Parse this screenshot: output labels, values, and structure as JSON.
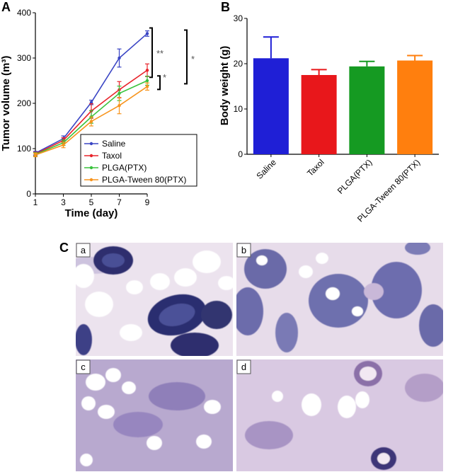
{
  "panels": {
    "a": "A",
    "b": "B",
    "c": "C"
  },
  "chart_data": [
    {
      "type": "line",
      "title": "",
      "xlabel": "Time (day)",
      "ylabel": "Tumor volume (m³)",
      "x": [
        1,
        3,
        5,
        7,
        9
      ],
      "xticks": [
        "1",
        "3",
        "5",
        "7",
        "9"
      ],
      "yticks": [
        "0",
        "100",
        "200",
        "300",
        "400"
      ],
      "xlim": [
        1,
        9
      ],
      "ylim": [
        0,
        400
      ],
      "grid": false,
      "legend_position": "bottom-right",
      "series": [
        {
          "name": "Saline",
          "color": "#3a45c4",
          "values": [
            90,
            122,
            202,
            300,
            354
          ],
          "errors": [
            4,
            6,
            5,
            20,
            6
          ]
        },
        {
          "name": "Taxol",
          "color": "#e8242b",
          "values": [
            88,
            118,
            183,
            230,
            273
          ],
          "errors": [
            4,
            6,
            16,
            18,
            14
          ]
        },
        {
          "name": "PLGA(PTX)",
          "color": "#39c23c",
          "values": [
            87,
            113,
            170,
            222,
            250
          ],
          "errors": [
            4,
            6,
            14,
            16,
            10
          ]
        },
        {
          "name": "PLGA-Tween 80(PTX)",
          "color": "#f7941d",
          "values": [
            86,
            108,
            160,
            195,
            237
          ],
          "errors": [
            4,
            6,
            10,
            18,
            8
          ]
        }
      ],
      "significance": [
        "**",
        "*",
        "*"
      ]
    },
    {
      "type": "bar",
      "title": "",
      "xlabel": "",
      "ylabel": "Body weight (g)",
      "categories": [
        "Saline",
        "Taxol",
        "PLGA(PTX)",
        "PLGA-Tween 80(PTX)"
      ],
      "values": [
        21.2,
        17.5,
        19.4,
        20.7
      ],
      "errors": [
        4.7,
        1.2,
        1.1,
        1.1
      ],
      "colors": [
        "#1f1fd6",
        "#e8171b",
        "#159a22",
        "#ff7f0e"
      ],
      "yticks": [
        "0",
        "10",
        "20",
        "30"
      ],
      "ylim": [
        0,
        30
      ],
      "grid": false
    }
  ],
  "micrographs": [
    {
      "label": "a"
    },
    {
      "label": "b"
    },
    {
      "label": "c"
    },
    {
      "label": "d"
    }
  ]
}
